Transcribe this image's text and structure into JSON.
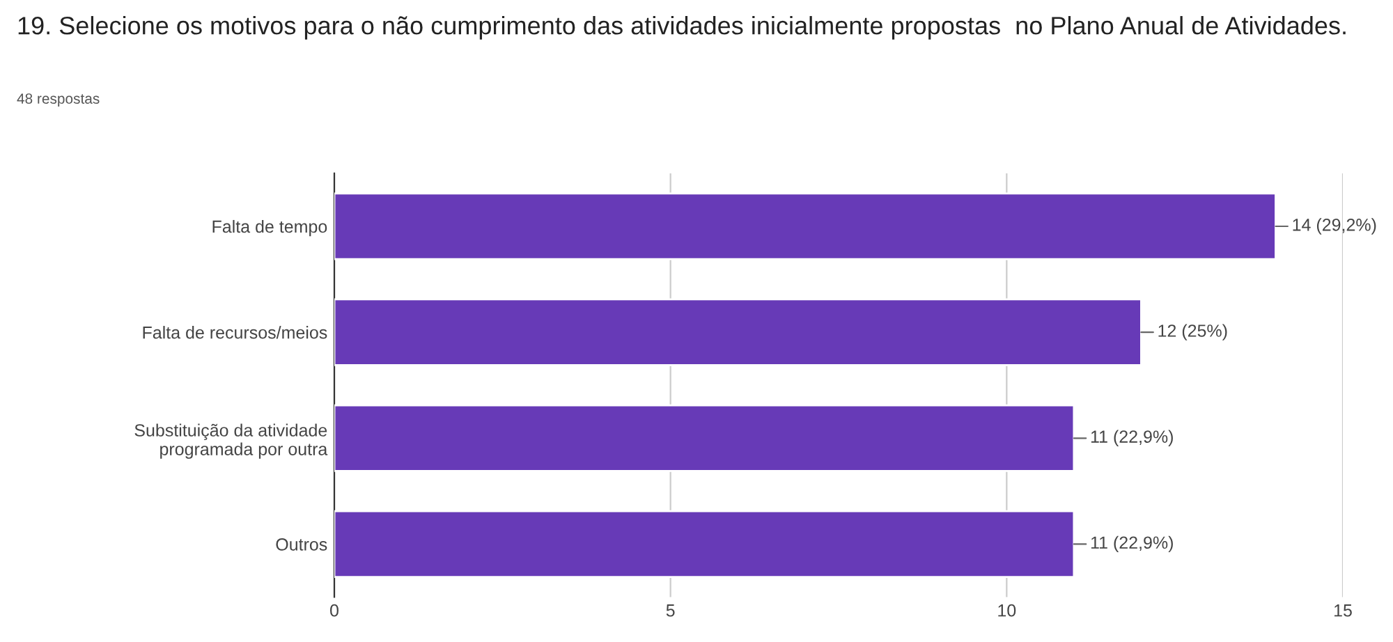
{
  "chart_data": {
    "type": "bar",
    "orientation": "horizontal",
    "title": "19. Selecione os motivos para o não cumprimento das atividades inicialmente propostas  no Plano Anual de Atividades.",
    "subtitle": "48 respostas",
    "categories": [
      "Falta de tempo",
      "Falta de recursos/meios",
      "Substituição da atividade\nprogramada por outra",
      "Outros"
    ],
    "values": [
      14,
      12,
      11,
      11
    ],
    "value_labels": [
      "14 (29,2%)",
      "12 (25%)",
      "11 (22,9%)",
      "11 (22,9%)"
    ],
    "color": "#673ab7",
    "xlim": [
      0,
      15
    ],
    "xticks": [
      0,
      5,
      10,
      15
    ],
    "grid": "x",
    "legend": false
  }
}
